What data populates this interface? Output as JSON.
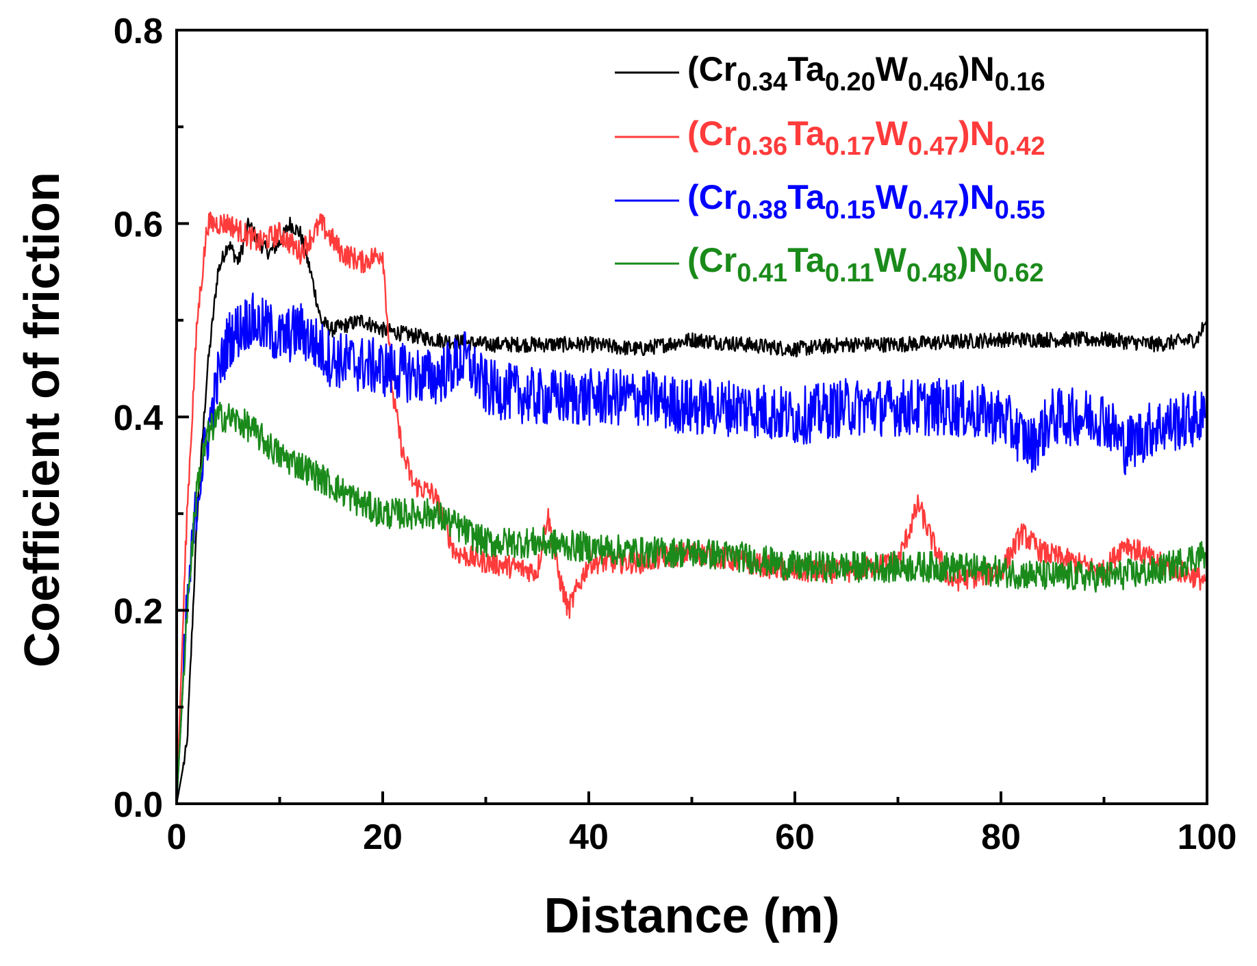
{
  "chart_data": {
    "type": "line",
    "title": "",
    "xlabel": "Distance (m)",
    "ylabel": "Coefficient of friction",
    "xlim": [
      0,
      100
    ],
    "ylim": [
      0,
      0.8
    ],
    "x_ticks": [
      0,
      20,
      40,
      60,
      80,
      100
    ],
    "x_tick_labels": [
      "0",
      "20",
      "40",
      "60",
      "80",
      "100"
    ],
    "y_ticks": [
      0,
      0.2,
      0.4,
      0.6,
      0.8
    ],
    "y_tick_labels": [
      "0.0",
      "0.2",
      "0.4",
      "0.6",
      "0.8"
    ],
    "grid": false,
    "legend_position": "top-right",
    "series": [
      {
        "color": "#000000",
        "legend_parts": [
          {
            "t": "(Cr",
            "sub": false
          },
          {
            "t": "0.34",
            "sub": true
          },
          {
            "t": "Ta",
            "sub": false
          },
          {
            "t": "0.20",
            "sub": true
          },
          {
            "t": "W",
            "sub": false
          },
          {
            "t": "0.46",
            "sub": true
          },
          {
            "t": ")N",
            "sub": false
          },
          {
            "t": "0.16",
            "sub": true
          }
        ],
        "noise": 0.008,
        "points": [
          [
            0,
            0.0
          ],
          [
            1,
            0.06
          ],
          [
            2,
            0.3
          ],
          [
            3,
            0.45
          ],
          [
            4,
            0.55
          ],
          [
            5,
            0.58
          ],
          [
            6,
            0.56
          ],
          [
            7,
            0.6
          ],
          [
            8,
            0.58
          ],
          [
            9,
            0.57
          ],
          [
            10,
            0.58
          ],
          [
            11,
            0.6
          ],
          [
            12,
            0.59
          ],
          [
            13,
            0.55
          ],
          [
            14,
            0.5
          ],
          [
            15,
            0.49
          ],
          [
            18,
            0.5
          ],
          [
            20,
            0.49
          ],
          [
            25,
            0.48
          ],
          [
            30,
            0.475
          ],
          [
            40,
            0.475
          ],
          [
            45,
            0.47
          ],
          [
            50,
            0.48
          ],
          [
            60,
            0.47
          ],
          [
            65,
            0.475
          ],
          [
            70,
            0.475
          ],
          [
            80,
            0.48
          ],
          [
            90,
            0.48
          ],
          [
            95,
            0.475
          ],
          [
            99,
            0.48
          ],
          [
            100,
            0.5
          ]
        ]
      },
      {
        "color": "#ff3b3b",
        "legend_parts": [
          {
            "t": "(Cr",
            "sub": false
          },
          {
            "t": "0.36",
            "sub": true
          },
          {
            "t": "Ta",
            "sub": false
          },
          {
            "t": "0.17",
            "sub": true
          },
          {
            "t": "W",
            "sub": false
          },
          {
            "t": "0.47",
            "sub": true
          },
          {
            "t": ")N",
            "sub": false
          },
          {
            "t": "0.42",
            "sub": true
          }
        ],
        "noise": 0.012,
        "points": [
          [
            0,
            0.0
          ],
          [
            1,
            0.3
          ],
          [
            2,
            0.5
          ],
          [
            3,
            0.6
          ],
          [
            5,
            0.6
          ],
          [
            8,
            0.58
          ],
          [
            10,
            0.59
          ],
          [
            12,
            0.57
          ],
          [
            14,
            0.6
          ],
          [
            16,
            0.57
          ],
          [
            18,
            0.56
          ],
          [
            20,
            0.57
          ],
          [
            21,
            0.42
          ],
          [
            22,
            0.36
          ],
          [
            23,
            0.33
          ],
          [
            25,
            0.32
          ],
          [
            27,
            0.26
          ],
          [
            30,
            0.25
          ],
          [
            35,
            0.24
          ],
          [
            36,
            0.3
          ],
          [
            37,
            0.24
          ],
          [
            38,
            0.2
          ],
          [
            40,
            0.25
          ],
          [
            45,
            0.25
          ],
          [
            50,
            0.26
          ],
          [
            55,
            0.25
          ],
          [
            60,
            0.24
          ],
          [
            65,
            0.24
          ],
          [
            70,
            0.25
          ],
          [
            72,
            0.31
          ],
          [
            73,
            0.28
          ],
          [
            75,
            0.23
          ],
          [
            80,
            0.24
          ],
          [
            82,
            0.28
          ],
          [
            84,
            0.26
          ],
          [
            90,
            0.24
          ],
          [
            92,
            0.27
          ],
          [
            95,
            0.25
          ],
          [
            100,
            0.23
          ]
        ]
      },
      {
        "color": "#0000ff",
        "legend_parts": [
          {
            "t": "(Cr",
            "sub": false
          },
          {
            "t": "0.38",
            "sub": true
          },
          {
            "t": "Ta",
            "sub": false
          },
          {
            "t": "0.15",
            "sub": true
          },
          {
            "t": "W",
            "sub": false
          },
          {
            "t": "0.47",
            "sub": true
          },
          {
            "t": ")N",
            "sub": false
          },
          {
            "t": "0.55",
            "sub": true
          }
        ],
        "noise": 0.03,
        "points": [
          [
            0,
            0.0
          ],
          [
            1,
            0.2
          ],
          [
            2,
            0.32
          ],
          [
            3,
            0.38
          ],
          [
            4,
            0.44
          ],
          [
            5,
            0.48
          ],
          [
            7,
            0.5
          ],
          [
            9,
            0.49
          ],
          [
            10,
            0.48
          ],
          [
            12,
            0.49
          ],
          [
            15,
            0.46
          ],
          [
            20,
            0.45
          ],
          [
            25,
            0.44
          ],
          [
            28,
            0.46
          ],
          [
            30,
            0.43
          ],
          [
            35,
            0.42
          ],
          [
            40,
            0.42
          ],
          [
            45,
            0.42
          ],
          [
            50,
            0.41
          ],
          [
            55,
            0.41
          ],
          [
            60,
            0.4
          ],
          [
            65,
            0.41
          ],
          [
            70,
            0.41
          ],
          [
            75,
            0.41
          ],
          [
            80,
            0.4
          ],
          [
            83,
            0.37
          ],
          [
            85,
            0.4
          ],
          [
            90,
            0.4
          ],
          [
            92,
            0.37
          ],
          [
            95,
            0.39
          ],
          [
            100,
            0.4
          ]
        ]
      },
      {
        "color": "#1a8a1a",
        "legend_parts": [
          {
            "t": "(Cr",
            "sub": false
          },
          {
            "t": "0.41",
            "sub": true
          },
          {
            "t": "Ta",
            "sub": false
          },
          {
            "t": "0.11",
            "sub": true
          },
          {
            "t": "W",
            "sub": false
          },
          {
            "t": "0.48",
            "sub": true
          },
          {
            "t": ")N",
            "sub": false
          },
          {
            "t": "0.62",
            "sub": true
          }
        ],
        "noise": 0.016,
        "points": [
          [
            0,
            0.0
          ],
          [
            1,
            0.2
          ],
          [
            2,
            0.33
          ],
          [
            3,
            0.38
          ],
          [
            4,
            0.4
          ],
          [
            5,
            0.4
          ],
          [
            7,
            0.39
          ],
          [
            10,
            0.36
          ],
          [
            12,
            0.35
          ],
          [
            15,
            0.33
          ],
          [
            18,
            0.31
          ],
          [
            20,
            0.3
          ],
          [
            25,
            0.3
          ],
          [
            30,
            0.27
          ],
          [
            35,
            0.27
          ],
          [
            40,
            0.265
          ],
          [
            45,
            0.26
          ],
          [
            50,
            0.26
          ],
          [
            55,
            0.255
          ],
          [
            60,
            0.245
          ],
          [
            65,
            0.245
          ],
          [
            70,
            0.245
          ],
          [
            75,
            0.245
          ],
          [
            80,
            0.24
          ],
          [
            85,
            0.235
          ],
          [
            90,
            0.235
          ],
          [
            95,
            0.24
          ],
          [
            100,
            0.26
          ]
        ]
      }
    ]
  }
}
